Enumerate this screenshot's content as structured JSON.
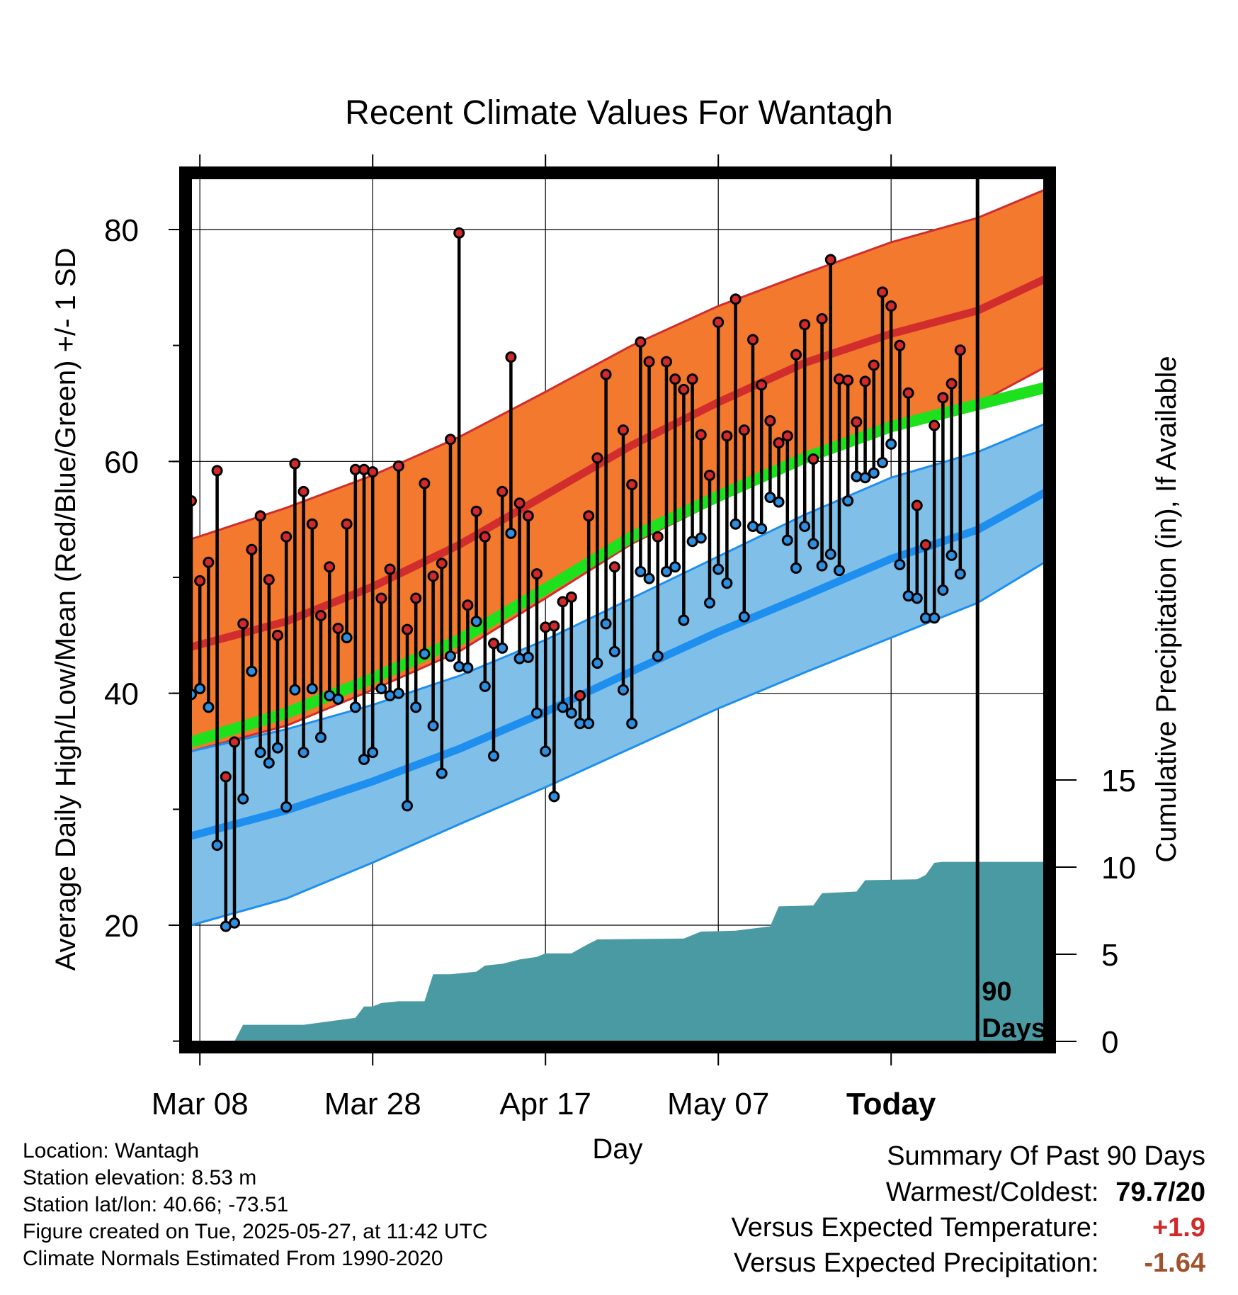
{
  "chart_data": {
    "type": "line",
    "title": "Recent Climate Values For Wantagh",
    "xlabel": "Day",
    "ylabel": "Average Daily High/Low/Mean (Red/Blue/Green) +/- 1 SD",
    "y2label": "Cumulative Precipitation (in), If Available",
    "days_shown": 90,
    "date_range": [
      "2025-02-25",
      "2025-05-27"
    ],
    "x_ticks": [
      "Mar 08",
      "Mar 28",
      "Apr 17",
      "May 07",
      "Today"
    ],
    "y_ticks": [
      20,
      40,
      60,
      80
    ],
    "ylim": [
      10,
      85
    ],
    "y2_ticks": [
      0,
      5,
      10,
      15
    ],
    "y2lim": [
      0,
      50
    ],
    "grid": true,
    "today_marker": {
      "x": "2025-05-27",
      "label": [
        "90",
        "Days"
      ]
    },
    "colors": {
      "high_band": "#f2792e",
      "high_mean": "#d12d2d",
      "low_band": "#80c0e8",
      "low_mean": "#1e8fef",
      "avg_mean": "#1ee11e",
      "precip": "#4a9aa3",
      "high_point": "#d22a2a",
      "low_point": "#2e8fe0"
    },
    "normals": {
      "dates": [
        "2025-02-25",
        "2025-03-08",
        "2025-03-18",
        "2025-03-28",
        "2025-04-07",
        "2025-04-17",
        "2025-04-27",
        "2025-05-07",
        "2025-05-17",
        "2025-05-27",
        "2025-06-04"
      ],
      "high_plus_sd": [
        53.3,
        56.0,
        58.8,
        62.1,
        66.0,
        70.0,
        73.4,
        76.2,
        78.9,
        81.0,
        83.5
      ],
      "high_mean": [
        44.0,
        46.2,
        49.2,
        52.8,
        57.1,
        61.4,
        65.1,
        68.5,
        71.0,
        73.0,
        75.8
      ],
      "high_minus_sd": [
        35.0,
        37.2,
        40.3,
        43.6,
        48.2,
        52.9,
        56.6,
        60.3,
        63.2,
        65.0,
        68.2
      ],
      "avg_mean": [
        35.8,
        38.3,
        41.3,
        44.6,
        49.0,
        53.5,
        57.0,
        60.3,
        63.0,
        64.9,
        66.4
      ],
      "low_plus_sd": [
        35.0,
        36.9,
        39.0,
        41.5,
        44.6,
        48.2,
        51.8,
        55.4,
        58.6,
        60.8,
        63.3
      ],
      "low_mean": [
        27.7,
        29.9,
        32.4,
        35.2,
        38.4,
        41.9,
        45.3,
        48.4,
        51.6,
        54.1,
        57.4
      ],
      "low_minus_sd": [
        20.0,
        22.3,
        25.4,
        28.7,
        31.9,
        35.3,
        38.7,
        41.8,
        44.8,
        47.8,
        51.4
      ]
    },
    "daily": {
      "start_date": "2025-02-25",
      "high": [
        56.6,
        49.7,
        51.3,
        59.2,
        32.8,
        35.8,
        46.0,
        52.4,
        55.3,
        49.8,
        45.0,
        53.5,
        59.8,
        57.4,
        54.6,
        46.7,
        50.9,
        45.6,
        54.6,
        59.3,
        59.3,
        59.1,
        48.2,
        50.7,
        59.6,
        45.5,
        48.2,
        58.1,
        50.1,
        51.2,
        61.9,
        79.7,
        47.6,
        55.7,
        53.5,
        44.3,
        57.4,
        69.0,
        56.4,
        55.3,
        50.3,
        45.7,
        45.8,
        47.9,
        48.3,
        39.8,
        55.3,
        60.3,
        67.5,
        50.9,
        62.7,
        58.0,
        70.3,
        68.6,
        53.5,
        68.6,
        67.1,
        66.2,
        67.1,
        62.3,
        58.8,
        72.0,
        62.2,
        74.0,
        62.7,
        70.5,
        66.6,
        63.5,
        61.6,
        62.2,
        69.2,
        71.8,
        60.2,
        72.3,
        77.4,
        67.1,
        67.0,
        63.4,
        66.9,
        68.3,
        74.6,
        73.4,
        70.0,
        65.9,
        56.2,
        52.8,
        63.1,
        65.5,
        66.7,
        69.6
      ],
      "low": [
        39.9,
        40.4,
        38.8,
        26.9,
        19.9,
        20.2,
        30.9,
        41.9,
        34.9,
        34.0,
        35.3,
        30.2,
        40.3,
        34.9,
        40.4,
        36.2,
        39.8,
        39.5,
        44.8,
        38.8,
        34.3,
        34.9,
        40.4,
        39.8,
        40.0,
        30.3,
        38.8,
        43.4,
        37.2,
        33.1,
        43.2,
        42.3,
        42.2,
        46.2,
        40.6,
        34.6,
        43.9,
        53.8,
        43.0,
        43.1,
        38.3,
        35.0,
        31.1,
        38.8,
        38.3,
        37.4,
        37.4,
        42.6,
        46.0,
        43.6,
        40.3,
        37.4,
        50.5,
        49.9,
        43.2,
        50.5,
        50.9,
        46.3,
        53.1,
        53.4,
        47.8,
        50.7,
        49.5,
        54.6,
        46.6,
        54.4,
        54.2,
        56.9,
        56.5,
        53.2,
        50.8,
        54.4,
        52.9,
        51.0,
        52.0,
        50.6,
        56.6,
        58.7,
        58.6,
        59.0,
        59.9,
        61.5,
        51.1,
        48.4,
        48.2,
        46.5,
        46.5,
        48.9,
        51.9,
        50.3
      ]
    },
    "precip": {
      "dates": [
        "2025-02-25",
        "2025-03-02",
        "2025-03-03",
        "2025-03-10",
        "2025-03-16",
        "2025-03-17",
        "2025-03-18",
        "2025-03-19",
        "2025-03-21",
        "2025-03-24",
        "2025-03-25",
        "2025-03-27",
        "2025-03-30",
        "2025-03-31",
        "2025-04-02",
        "2025-04-04",
        "2025-04-06",
        "2025-04-07",
        "2025-04-10",
        "2025-04-12",
        "2025-04-13",
        "2025-04-23",
        "2025-04-25",
        "2025-04-29",
        "2025-05-03",
        "2025-05-04",
        "2025-05-08",
        "2025-05-09",
        "2025-05-13",
        "2025-05-14",
        "2025-05-20",
        "2025-05-21",
        "2025-05-22",
        "2025-05-23",
        "2025-06-04"
      ],
      "cumulative": [
        0,
        0,
        0.95,
        0.95,
        1.35,
        2.0,
        2.0,
        2.2,
        2.3,
        2.3,
        3.85,
        3.85,
        4.0,
        4.35,
        4.45,
        4.7,
        4.85,
        5.05,
        5.05,
        5.6,
        5.85,
        5.9,
        6.3,
        6.35,
        6.6,
        7.75,
        7.8,
        8.5,
        8.6,
        9.25,
        9.3,
        9.55,
        10.25,
        10.3,
        10.3
      ]
    }
  },
  "info": {
    "location": "Location: Wantagh",
    "elevation": "Station elevation: 8.53 m",
    "latlon": "Station lat/lon: 40.66; -73.51",
    "created": "Figure created on Tue, 2025-05-27, at 11:42 UTC",
    "normals": "Climate Normals Estimated From 1990-2020"
  },
  "summary": {
    "heading": "Summary Of Past 90 Days",
    "warmest_coldest_label": "Warmest/Coldest:",
    "warmest_coldest_value": "79.7/20",
    "temp_label": "Versus Expected Temperature:",
    "temp_value": "+1.9",
    "temp_color": "#d22a2a",
    "precip_label": "Versus Expected Precipitation:",
    "precip_value": "-1.64",
    "precip_color": "#a0522d"
  }
}
